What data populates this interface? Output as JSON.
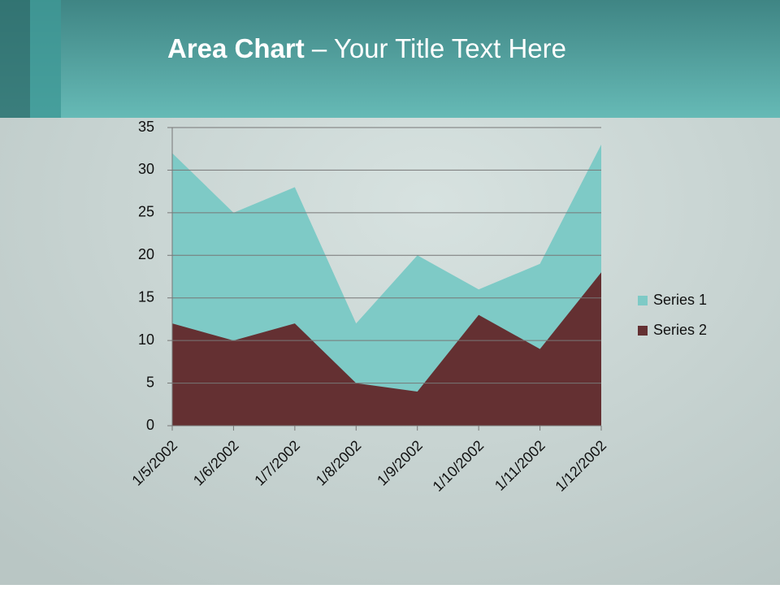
{
  "chart_data": {
    "type": "area",
    "title": {
      "bold": "Area Chart",
      "rest": "– Your Title Text Here"
    },
    "categories": [
      "1/5/2002",
      "1/6/2002",
      "1/7/2002",
      "1/8/2002",
      "1/9/2002",
      "1/10/2002",
      "1/11/2002",
      "1/12/2002"
    ],
    "series": [
      {
        "name": "Series 1",
        "color": "#7ecac6",
        "values": [
          32,
          25,
          28,
          12,
          20,
          16,
          19,
          33
        ]
      },
      {
        "name": "Series 2",
        "color": "#643032",
        "values": [
          12,
          10,
          12,
          5,
          4,
          13,
          9,
          18
        ]
      }
    ],
    "ylim": [
      0,
      35
    ],
    "yticks": [
      0,
      5,
      10,
      15,
      20,
      25,
      30,
      35
    ],
    "grid": true,
    "legend": "right"
  }
}
